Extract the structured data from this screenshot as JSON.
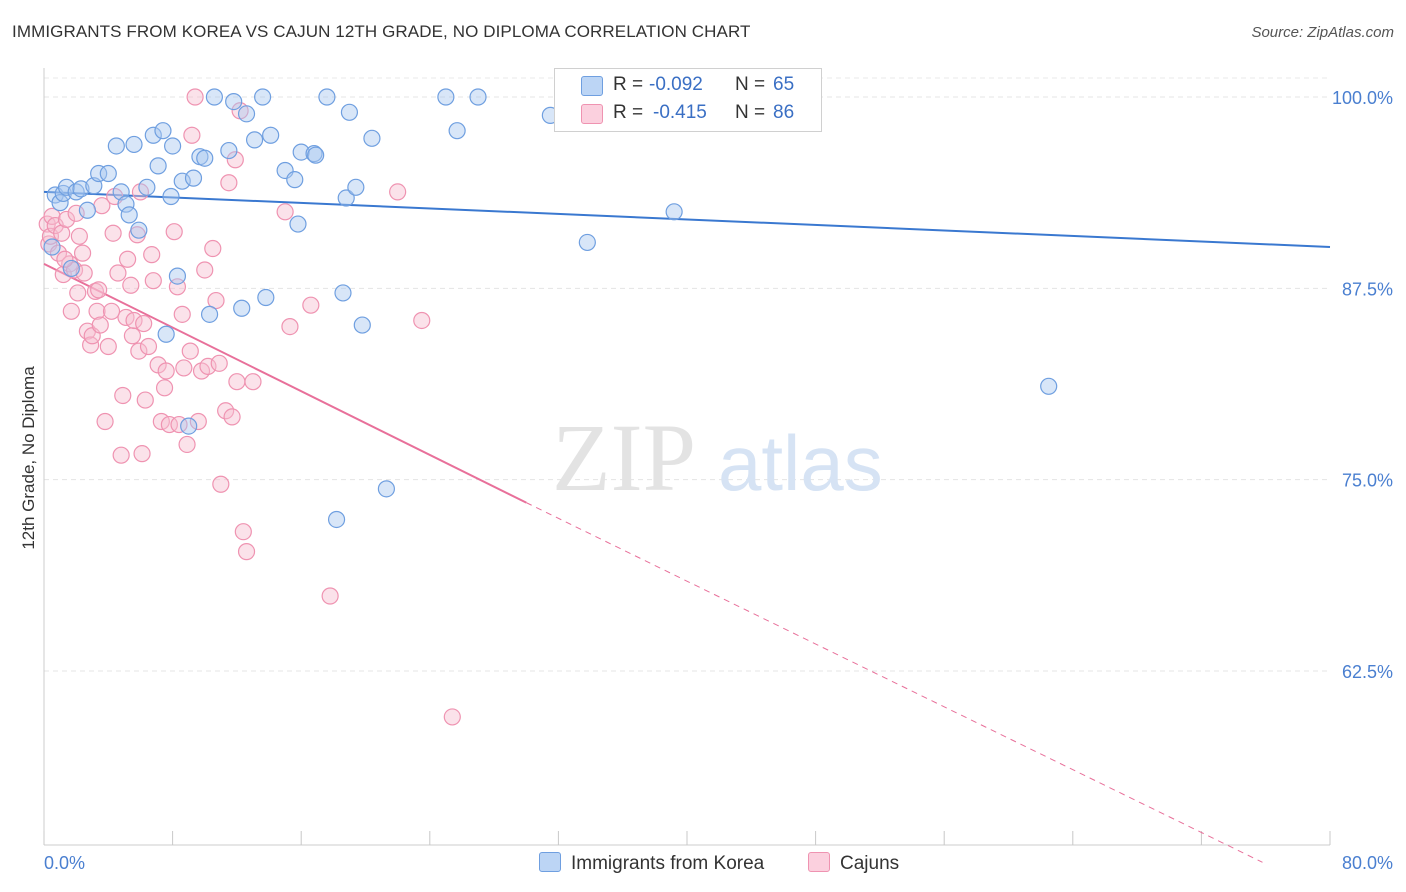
{
  "header": {
    "title": "IMMIGRANTS FROM KOREA VS CAJUN 12TH GRADE, NO DIPLOMA CORRELATION CHART",
    "source": "Source: ZipAtlas.com"
  },
  "watermark": {
    "zip": "ZIP",
    "atlas": "atlas"
  },
  "legend": {
    "korea": {
      "r_label": "R =",
      "r_value": "-0.092",
      "n_label": "N =",
      "n_value": "65"
    },
    "cajun": {
      "r_label": "R =",
      "r_value": "-0.415",
      "n_label": "N =",
      "n_value": "86"
    }
  },
  "bottom_legend": {
    "korea": "Immigrants from Korea",
    "cajun": "Cajuns"
  },
  "colors": {
    "korea_fill": "#a9c8f0",
    "korea_stroke": "#6f9fe0",
    "korea_line": "#3a78d0",
    "cajun_fill": "#f6bfd0",
    "cajun_stroke": "#ef93b1",
    "cajun_line": "#e8709a",
    "tick_label": "#4a7fd0"
  },
  "chart_data": {
    "type": "scatter",
    "title": "IMMIGRANTS FROM KOREA VS CAJUN 12TH GRADE, NO DIPLOMA CORRELATION CHART",
    "xlabel": "",
    "ylabel": "12th Grade, No Diploma",
    "xlim": [
      0,
      80
    ],
    "ylim": [
      50,
      101.5
    ],
    "x_tick_labels": [
      "0.0%",
      "80.0%"
    ],
    "y_ticks": [
      62.5,
      75.0,
      87.5,
      100.0
    ],
    "y_tick_labels": [
      "62.5%",
      "75.0%",
      "87.5%",
      "100.0%"
    ],
    "grid": true,
    "legend_position": "top-center",
    "series": [
      {
        "name": "Immigrants from Korea",
        "points": [
          [
            0.5,
            90.2
          ],
          [
            0.7,
            93.6
          ],
          [
            1.0,
            93.1
          ],
          [
            1.2,
            93.7
          ],
          [
            1.4,
            94.1
          ],
          [
            1.7,
            88.8
          ],
          [
            2.0,
            93.8
          ],
          [
            2.3,
            94.0
          ],
          [
            2.7,
            92.6
          ],
          [
            3.1,
            94.2
          ],
          [
            3.4,
            95.0
          ],
          [
            4.0,
            95.0
          ],
          [
            4.5,
            96.8
          ],
          [
            4.8,
            93.8
          ],
          [
            5.1,
            93.0
          ],
          [
            5.3,
            92.3
          ],
          [
            5.6,
            96.9
          ],
          [
            5.9,
            91.3
          ],
          [
            6.4,
            94.1
          ],
          [
            6.8,
            97.5
          ],
          [
            7.1,
            95.5
          ],
          [
            7.4,
            97.8
          ],
          [
            7.6,
            84.5
          ],
          [
            7.9,
            93.5
          ],
          [
            8.0,
            96.8
          ],
          [
            8.3,
            88.3
          ],
          [
            8.6,
            94.5
          ],
          [
            9.0,
            78.5
          ],
          [
            9.3,
            94.7
          ],
          [
            9.7,
            96.1
          ],
          [
            10.0,
            96.0
          ],
          [
            10.3,
            85.8
          ],
          [
            10.6,
            100.0
          ],
          [
            11.5,
            96.5
          ],
          [
            11.8,
            99.7
          ],
          [
            12.3,
            86.2
          ],
          [
            12.6,
            98.9
          ],
          [
            13.1,
            97.2
          ],
          [
            13.6,
            100.0
          ],
          [
            13.8,
            86.9
          ],
          [
            14.1,
            97.5
          ],
          [
            15.0,
            95.2
          ],
          [
            15.6,
            94.6
          ],
          [
            15.8,
            91.7
          ],
          [
            16.0,
            96.4
          ],
          [
            16.8,
            96.3
          ],
          [
            16.9,
            96.2
          ],
          [
            17.6,
            100.0
          ],
          [
            18.2,
            72.4
          ],
          [
            18.6,
            87.2
          ],
          [
            18.8,
            93.4
          ],
          [
            19.0,
            99.0
          ],
          [
            19.4,
            94.1
          ],
          [
            19.8,
            85.1
          ],
          [
            20.4,
            97.3
          ],
          [
            21.3,
            74.4
          ],
          [
            25.0,
            100.0
          ],
          [
            25.7,
            97.8
          ],
          [
            27.0,
            100.0
          ],
          [
            31.5,
            98.8
          ],
          [
            33.8,
            90.5
          ],
          [
            38.9,
            100.0
          ],
          [
            39.2,
            92.5
          ],
          [
            62.5,
            81.1
          ],
          [
            40.0,
            100.0
          ]
        ]
      },
      {
        "name": "Cajuns",
        "points": [
          [
            0.2,
            91.7
          ],
          [
            0.3,
            90.4
          ],
          [
            0.4,
            90.9
          ],
          [
            0.5,
            92.2
          ],
          [
            0.7,
            91.6
          ],
          [
            0.9,
            89.8
          ],
          [
            1.1,
            91.1
          ],
          [
            1.2,
            88.4
          ],
          [
            1.4,
            92.0
          ],
          [
            1.6,
            89.1
          ],
          [
            1.7,
            86.0
          ],
          [
            1.9,
            88.7
          ],
          [
            2.1,
            87.2
          ],
          [
            2.2,
            90.9
          ],
          [
            2.4,
            89.8
          ],
          [
            2.5,
            88.5
          ],
          [
            2.7,
            84.7
          ],
          [
            2.9,
            83.8
          ],
          [
            3.0,
            84.4
          ],
          [
            3.2,
            87.3
          ],
          [
            3.3,
            86.0
          ],
          [
            3.5,
            85.1
          ],
          [
            3.6,
            92.9
          ],
          [
            3.8,
            78.8
          ],
          [
            4.0,
            83.7
          ],
          [
            4.3,
            91.1
          ],
          [
            4.4,
            93.5
          ],
          [
            4.6,
            88.5
          ],
          [
            4.8,
            76.6
          ],
          [
            4.9,
            80.5
          ],
          [
            5.1,
            85.6
          ],
          [
            5.2,
            89.4
          ],
          [
            5.4,
            87.7
          ],
          [
            5.5,
            84.4
          ],
          [
            5.6,
            85.4
          ],
          [
            5.8,
            91.0
          ],
          [
            5.9,
            83.4
          ],
          [
            6.0,
            93.8
          ],
          [
            6.1,
            76.7
          ],
          [
            6.3,
            80.2
          ],
          [
            6.5,
            83.7
          ],
          [
            6.7,
            89.7
          ],
          [
            6.8,
            88.0
          ],
          [
            7.1,
            82.5
          ],
          [
            7.3,
            78.8
          ],
          [
            7.5,
            81.0
          ],
          [
            7.6,
            82.1
          ],
          [
            7.8,
            78.6
          ],
          [
            8.1,
            91.2
          ],
          [
            8.3,
            87.6
          ],
          [
            8.4,
            78.6
          ],
          [
            8.6,
            85.8
          ],
          [
            8.7,
            82.3
          ],
          [
            8.9,
            77.3
          ],
          [
            9.1,
            83.4
          ],
          [
            9.2,
            97.5
          ],
          [
            9.6,
            78.8
          ],
          [
            9.8,
            82.1
          ],
          [
            10.0,
            88.7
          ],
          [
            10.2,
            82.4
          ],
          [
            10.5,
            90.1
          ],
          [
            10.7,
            86.7
          ],
          [
            11.0,
            74.7
          ],
          [
            11.3,
            79.5
          ],
          [
            11.5,
            94.4
          ],
          [
            11.7,
            79.1
          ],
          [
            11.9,
            95.9
          ],
          [
            12.0,
            81.4
          ],
          [
            12.4,
            71.6
          ],
          [
            12.6,
            70.3
          ],
          [
            13.0,
            81.4
          ],
          [
            15.0,
            92.5
          ],
          [
            15.3,
            85.0
          ],
          [
            16.6,
            86.4
          ],
          [
            17.8,
            67.4
          ],
          [
            22.0,
            93.8
          ],
          [
            23.5,
            85.4
          ],
          [
            25.4,
            59.5
          ],
          [
            9.4,
            100.0
          ],
          [
            10.9,
            82.6
          ],
          [
            12.2,
            99.1
          ],
          [
            3.4,
            87.4
          ],
          [
            2.0,
            92.4
          ],
          [
            1.3,
            89.4
          ],
          [
            6.2,
            85.2
          ],
          [
            4.2,
            86.0
          ]
        ]
      }
    ],
    "trend_lines": [
      {
        "series": "Immigrants from Korea",
        "x": [
          0,
          80
        ],
        "y": [
          93.8,
          90.2
        ],
        "style": "solid"
      },
      {
        "series": "Cajuns",
        "x": [
          0,
          30,
          75.8
        ],
        "y": [
          89.1,
          73.5,
          50.0
        ],
        "style": "solid-then-dashed",
        "solid_until_x": 30
      }
    ]
  }
}
